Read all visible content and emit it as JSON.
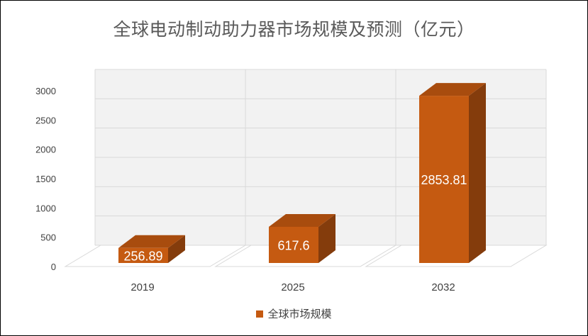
{
  "chart_data": {
    "type": "bar",
    "title": "全球电动制动助力器市场规模及预测（亿元）",
    "categories": [
      "2019",
      "2025",
      "2032"
    ],
    "series": [
      {
        "name": "全球市场规模",
        "values": [
          256.89,
          617.6,
          2853.81
        ]
      }
    ],
    "data_labels": [
      "256.89",
      "617.6",
      "2853.81"
    ],
    "y_ticks": [
      "0",
      "500",
      "1000",
      "1500",
      "2000",
      "2500",
      "3000"
    ],
    "ylim": [
      0,
      3000
    ],
    "grid": true,
    "legend_position": "bottom",
    "colors": {
      "bar_front": "#C55A11",
      "bar_top": "#A84C0E",
      "bar_side": "#843C0C",
      "wall": "#F2F2F2",
      "gridline": "#D9D9D9",
      "floor_line": "#D9D9D9"
    }
  }
}
